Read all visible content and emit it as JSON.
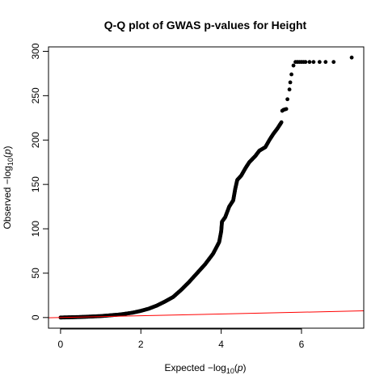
{
  "chart_data": {
    "type": "scatter",
    "title": "Q-Q plot of GWAS p-values for Height",
    "xlabel": {
      "prefix": "Expected ",
      "minus": "−",
      "log": "log",
      "sub": "10",
      "arg": "(",
      "p": "p",
      "close": ")"
    },
    "ylabel": {
      "prefix": "Observed ",
      "minus": "−",
      "log": "log",
      "sub": "10",
      "arg": "(",
      "p": "p",
      "close": ")"
    },
    "xlim": [
      -0.3,
      7.55
    ],
    "ylim": [
      -12,
      305
    ],
    "xticks": [
      0,
      2,
      4,
      6
    ],
    "yticks": [
      0,
      50,
      100,
      150,
      200,
      250,
      300
    ],
    "grid": false,
    "point_color": "#000000",
    "reference_line": {
      "color": "#ff0000",
      "from": [
        -0.3,
        -0.3
      ],
      "to": [
        7.55,
        7.55
      ]
    },
    "curve": [
      [
        0.0,
        0.0
      ],
      [
        0.5,
        0.6
      ],
      [
        1.0,
        1.6
      ],
      [
        1.5,
        3.5
      ],
      [
        1.8,
        5.5
      ],
      [
        2.0,
        7.5
      ],
      [
        2.2,
        10.0
      ],
      [
        2.4,
        13.5
      ],
      [
        2.6,
        18.0
      ],
      [
        2.8,
        23.0
      ],
      [
        3.0,
        31.0
      ],
      [
        3.2,
        40.0
      ],
      [
        3.4,
        50.0
      ],
      [
        3.6,
        60.0
      ],
      [
        3.8,
        72.0
      ],
      [
        3.95,
        85.0
      ],
      [
        4.0,
        97.0
      ],
      [
        4.02,
        108.0
      ],
      [
        4.1,
        113.0
      ],
      [
        4.2,
        125.0
      ],
      [
        4.3,
        132.0
      ],
      [
        4.35,
        145.0
      ],
      [
        4.4,
        155.0
      ],
      [
        4.5,
        160.0
      ],
      [
        4.6,
        168.0
      ],
      [
        4.7,
        175.0
      ],
      [
        4.85,
        182.0
      ],
      [
        4.95,
        188.0
      ],
      [
        5.1,
        192.0
      ],
      [
        5.2,
        200.0
      ],
      [
        5.3,
        207.0
      ],
      [
        5.4,
        213.0
      ],
      [
        5.5,
        220.0
      ]
    ],
    "outliers": [
      [
        5.52,
        233
      ],
      [
        5.55,
        234
      ],
      [
        5.58,
        234.5
      ],
      [
        5.62,
        235
      ],
      [
        5.65,
        246
      ],
      [
        5.7,
        257
      ],
      [
        5.72,
        265
      ],
      [
        5.75,
        274
      ],
      [
        5.8,
        284
      ],
      [
        5.85,
        288
      ],
      [
        5.9,
        288
      ],
      [
        5.95,
        288
      ],
      [
        6.0,
        288
      ],
      [
        6.05,
        288
      ],
      [
        6.1,
        288
      ],
      [
        6.2,
        288
      ],
      [
        6.3,
        288
      ],
      [
        6.45,
        288
      ],
      [
        6.6,
        288
      ],
      [
        6.8,
        288
      ],
      [
        7.25,
        293
      ]
    ]
  }
}
